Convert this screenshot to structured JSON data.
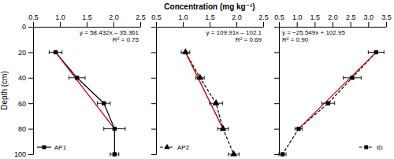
{
  "chart_data": [
    {
      "type": "line",
      "y_label": "Depth (cm)",
      "annotations": [
        "y = 58.432x – 35.361",
        "R² = 0.75"
      ],
      "legend": "lower left",
      "xlim": [
        0.5,
        2.5
      ],
      "xticks": [
        0.5,
        {
          "value": 1,
          "label": "1.0"
        },
        1.5,
        {
          "value": 2,
          "label": "2.0"
        },
        2.5
      ],
      "ylim": [
        0,
        100
      ],
      "yticks": [
        0,
        20,
        40,
        60,
        80,
        100
      ],
      "series": [
        {
          "name": "AP1",
          "color": "#000000",
          "marker": "square",
          "line_style": "solid",
          "x": [
            0.92,
            1.32,
            1.82,
            2.02,
            2.02
          ],
          "values": [
            20,
            40,
            60,
            80,
            100
          ],
          "x_errors": [
            0.12,
            0.15,
            0.12,
            0.2,
            0.08
          ]
        },
        {
          "color": "#cc0000",
          "line_style": "solid",
          "x": [
            0.92,
            2.02
          ],
          "values": [
            20,
            80
          ]
        }
      ]
    },
    {
      "type": "line",
      "x_label": "Concentration (mg kg⁻¹)",
      "annotations": [
        "y = 109.91x – 102.1",
        "R² = 0.69"
      ],
      "legend": "lower left",
      "tick_labels": "x",
      "xlim": [
        0.5,
        2.5
      ],
      "xticks": [
        0.5,
        {
          "value": 1,
          "label": "1.0"
        },
        1.5,
        {
          "value": 2,
          "label": "2.0"
        },
        2.5
      ],
      "ylim": [
        0,
        100
      ],
      "yticks": [
        0,
        20,
        40,
        60,
        80,
        100
      ],
      "series": [
        {
          "name": "AP2",
          "color": "#000000",
          "marker": "triangle",
          "line_style": "dashed",
          "x": [
            1.05,
            1.32,
            1.62,
            1.75,
            1.95
          ],
          "values": [
            20,
            40,
            60,
            80,
            100
          ],
          "x_errors": [
            0.08,
            0.08,
            0.12,
            0.1,
            0.1
          ]
        },
        {
          "color": "#cc0000",
          "line_style": "solid",
          "x": [
            1.05,
            1.75
          ],
          "values": [
            20,
            80
          ]
        }
      ]
    },
    {
      "type": "line",
      "annotations": [
        "y = −25.549x + 102.95",
        "R² = 0.90"
      ],
      "legend": "lower right",
      "tick_labels": "x",
      "xlim": [
        0.5,
        3.5
      ],
      "xticks": [
        0.5,
        {
          "value": 1,
          "label": "1.0"
        },
        1.5,
        {
          "value": 2,
          "label": "2.0"
        },
        2.5,
        {
          "value": 3,
          "label": "3.0"
        },
        3.5
      ],
      "ylim": [
        0,
        100
      ],
      "yticks": [
        0,
        20,
        40,
        60,
        80,
        100
      ],
      "series": [
        {
          "name": "ID",
          "color": "#000000",
          "marker": "square",
          "line_style": "dashed",
          "x": [
            3.22,
            2.55,
            1.88,
            1.05,
            0.6
          ],
          "values": [
            20,
            40,
            60,
            80,
            100
          ],
          "x_errors": [
            0.22,
            0.25,
            0.18,
            0.1,
            0.1
          ]
        },
        {
          "color": "#cc0000",
          "line_style": "solid",
          "x": [
            3.22,
            1.05
          ],
          "values": [
            20,
            80
          ]
        }
      ]
    }
  ]
}
